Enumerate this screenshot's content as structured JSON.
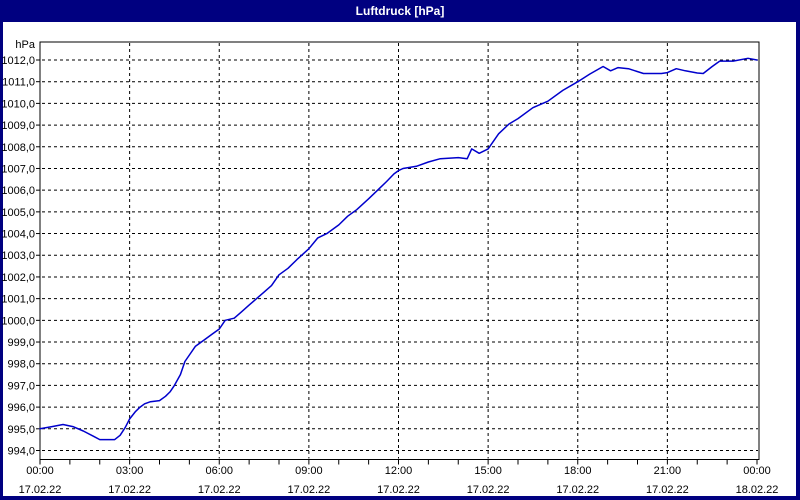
{
  "window": {
    "title": "Luftdruck [hPa]"
  },
  "colors": {
    "frame": "#000080",
    "title_text": "#ffffff",
    "plot_background": "#ffffff",
    "grid": "#000000",
    "line": "#0000cc"
  },
  "chart_data": {
    "type": "line",
    "title": "Luftdruck [hPa]",
    "series_name": "Luftdruck",
    "ylabel": "hPa",
    "xlabel": "",
    "ylim": [
      993.6,
      1012.85
    ],
    "xlim_hours": [
      0,
      24
    ],
    "grid": "dashed, horizontal every 1 hPa, vertical every 3 h",
    "legend_position": "none",
    "y_ticks": [
      {
        "value": 994.0,
        "label": "994,0"
      },
      {
        "value": 995.0,
        "label": "995,0"
      },
      {
        "value": 996.0,
        "label": "996,0"
      },
      {
        "value": 997.0,
        "label": "997,0"
      },
      {
        "value": 998.0,
        "label": "998,0"
      },
      {
        "value": 999.0,
        "label": "999,0"
      },
      {
        "value": 1000.0,
        "label": "1000,0"
      },
      {
        "value": 1001.0,
        "label": "1001,0"
      },
      {
        "value": 1002.0,
        "label": "1002,0"
      },
      {
        "value": 1003.0,
        "label": "1003,0"
      },
      {
        "value": 1004.0,
        "label": "1004,0"
      },
      {
        "value": 1005.0,
        "label": "1005,0"
      },
      {
        "value": 1006.0,
        "label": "1006,0"
      },
      {
        "value": 1007.0,
        "label": "1007,0"
      },
      {
        "value": 1008.0,
        "label": "1008,0"
      },
      {
        "value": 1009.0,
        "label": "1009,0"
      },
      {
        "value": 1010.0,
        "label": "1010,0"
      },
      {
        "value": 1011.0,
        "label": "1011,0"
      },
      {
        "value": 1012.0,
        "label": "1012,0"
      }
    ],
    "x_ticks": [
      {
        "hour": 0,
        "time": "00:00",
        "date": "17.02.22"
      },
      {
        "hour": 3,
        "time": "03:00",
        "date": "17.02.22"
      },
      {
        "hour": 6,
        "time": "06:00",
        "date": "17.02.22"
      },
      {
        "hour": 9,
        "time": "09:00",
        "date": "17.02.22"
      },
      {
        "hour": 12,
        "time": "12:00",
        "date": "17.02.22"
      },
      {
        "hour": 15,
        "time": "15:00",
        "date": "17.02.22"
      },
      {
        "hour": 18,
        "time": "18:00",
        "date": "17.02.22"
      },
      {
        "hour": 21,
        "time": "21:00",
        "date": "17.02.22"
      },
      {
        "hour": 24,
        "time": "00:00",
        "date": "18.02.22"
      }
    ],
    "minor_x_tick_every_hours": 1,
    "points": [
      [
        0.0,
        995.0
      ],
      [
        0.4,
        995.1
      ],
      [
        0.77,
        995.2
      ],
      [
        1.1,
        995.1
      ],
      [
        1.45,
        994.9
      ],
      [
        1.8,
        994.65
      ],
      [
        2.0,
        994.5
      ],
      [
        2.5,
        994.5
      ],
      [
        2.68,
        994.7
      ],
      [
        2.85,
        995.05
      ],
      [
        3.0,
        995.45
      ],
      [
        3.2,
        995.8
      ],
      [
        3.35,
        996.0
      ],
      [
        3.5,
        996.15
      ],
      [
        3.7,
        996.25
      ],
      [
        4.0,
        996.3
      ],
      [
        4.2,
        996.5
      ],
      [
        4.35,
        996.7
      ],
      [
        4.5,
        997.0
      ],
      [
        4.7,
        997.5
      ],
      [
        4.85,
        998.1
      ],
      [
        5.0,
        998.4
      ],
      [
        5.2,
        998.8
      ],
      [
        5.5,
        999.1
      ],
      [
        5.75,
        999.35
      ],
      [
        6.0,
        999.6
      ],
      [
        6.2,
        1000.0
      ],
      [
        6.5,
        1000.1
      ],
      [
        6.75,
        1000.4
      ],
      [
        7.0,
        1000.7
      ],
      [
        7.25,
        1001.0
      ],
      [
        7.5,
        1001.3
      ],
      [
        7.75,
        1001.6
      ],
      [
        8.0,
        1002.1
      ],
      [
        8.3,
        1002.4
      ],
      [
        8.6,
        1002.8
      ],
      [
        9.0,
        1003.3
      ],
      [
        9.3,
        1003.8
      ],
      [
        9.6,
        1004.0
      ],
      [
        10.0,
        1004.4
      ],
      [
        10.3,
        1004.8
      ],
      [
        10.6,
        1005.1
      ],
      [
        11.0,
        1005.6
      ],
      [
        11.3,
        1006.0
      ],
      [
        11.6,
        1006.4
      ],
      [
        11.85,
        1006.75
      ],
      [
        12.0,
        1006.9
      ],
      [
        12.15,
        1007.0
      ],
      [
        12.6,
        1007.1
      ],
      [
        13.0,
        1007.3
      ],
      [
        13.4,
        1007.45
      ],
      [
        14.0,
        1007.5
      ],
      [
        14.3,
        1007.45
      ],
      [
        14.45,
        1007.9
      ],
      [
        14.7,
        1007.7
      ],
      [
        15.0,
        1007.9
      ],
      [
        15.35,
        1008.6
      ],
      [
        15.7,
        1009.05
      ],
      [
        16.0,
        1009.3
      ],
      [
        16.5,
        1009.8
      ],
      [
        17.0,
        1010.1
      ],
      [
        17.5,
        1010.6
      ],
      [
        18.0,
        1011.0
      ],
      [
        18.4,
        1011.35
      ],
      [
        18.85,
        1011.7
      ],
      [
        19.1,
        1011.5
      ],
      [
        19.35,
        1011.65
      ],
      [
        19.7,
        1011.6
      ],
      [
        20.2,
        1011.38
      ],
      [
        20.8,
        1011.38
      ],
      [
        21.0,
        1011.42
      ],
      [
        21.3,
        1011.6
      ],
      [
        21.6,
        1011.5
      ],
      [
        22.0,
        1011.4
      ],
      [
        22.2,
        1011.38
      ],
      [
        22.5,
        1011.7
      ],
      [
        22.75,
        1011.95
      ],
      [
        23.2,
        1011.95
      ],
      [
        23.7,
        1012.08
      ],
      [
        24.0,
        1012.0
      ]
    ]
  }
}
